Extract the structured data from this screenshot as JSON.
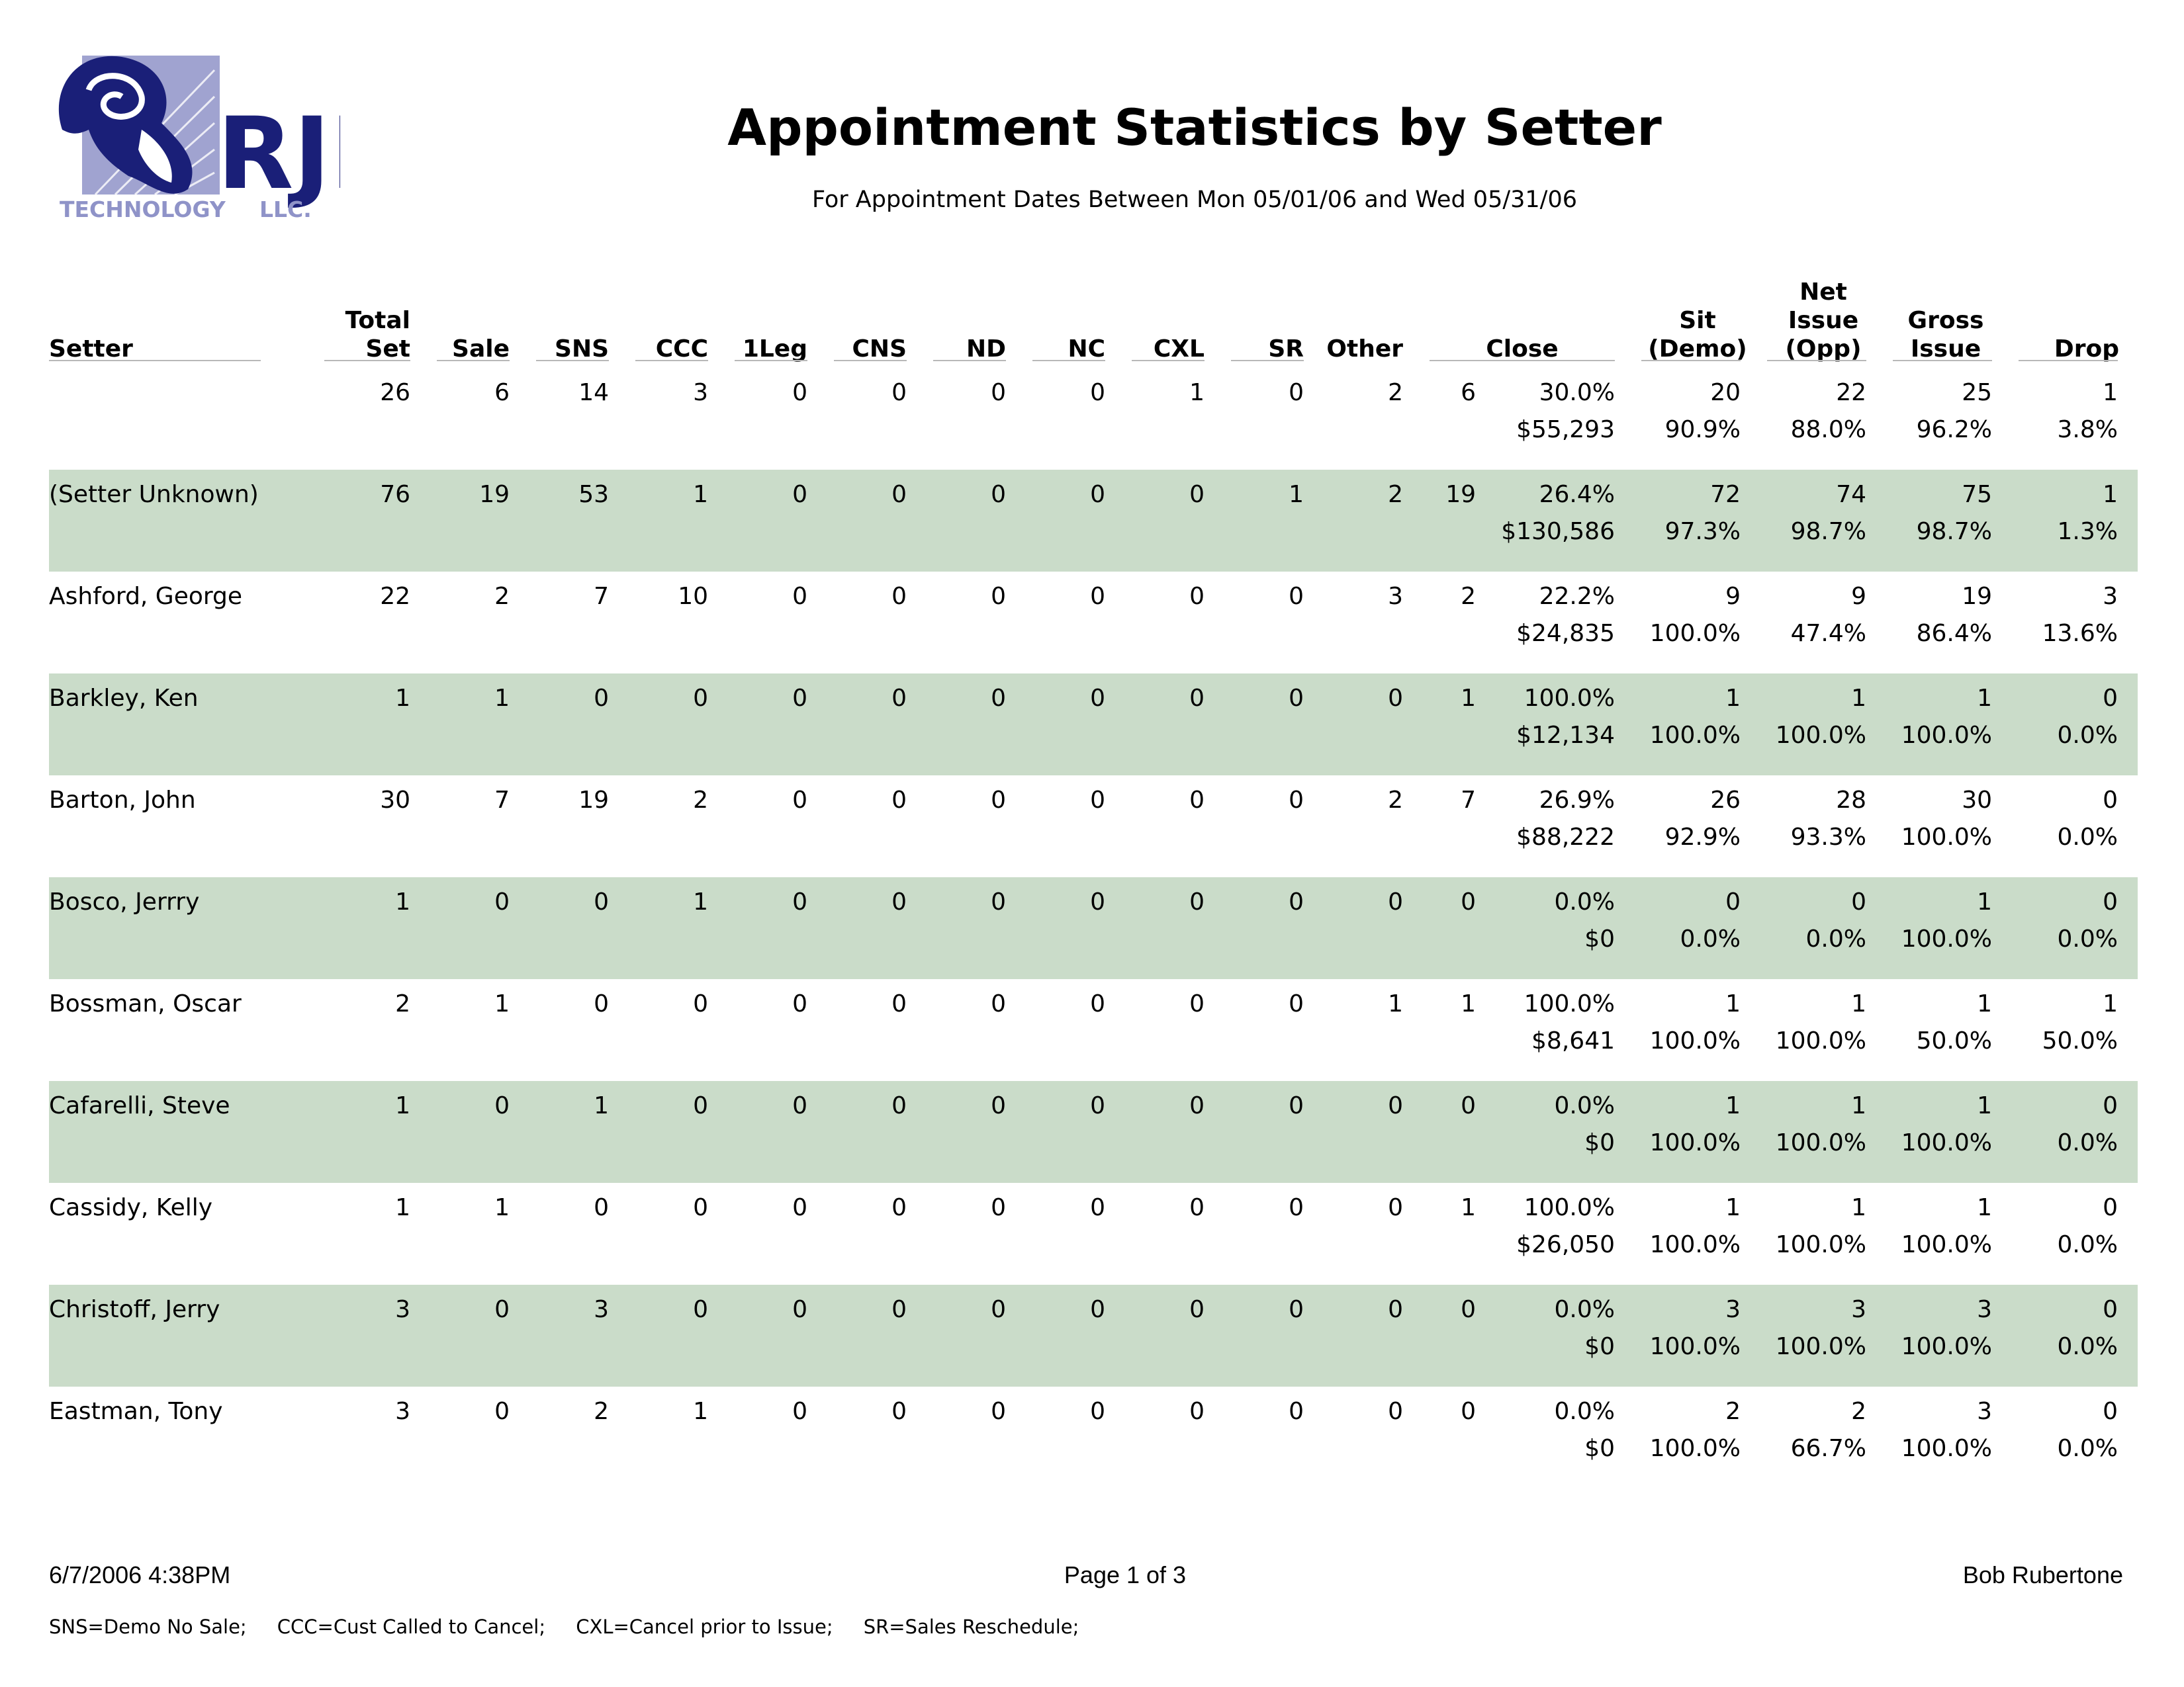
{
  "header": {
    "logo": {
      "main_text": "RJR",
      "sub_text": "TECHNOLOGY",
      "suffix": "LLC."
    },
    "title": "Appointment Statistics by Setter",
    "subtitle": "For Appointment Dates Between Mon 05/01/06 and Wed 05/31/06"
  },
  "columns": {
    "setter": "Setter",
    "total_set_1": "Total",
    "total_set_2": "Set",
    "sale": "Sale",
    "sns": "SNS",
    "ccc": "CCC",
    "oneleg": "1Leg",
    "cns": "CNS",
    "nd": "ND",
    "nc": "NC",
    "cxl": "CXL",
    "sr": "SR",
    "other": "Other",
    "close": "Close",
    "sit_1": "Sit",
    "sit_2": "(Demo)",
    "net_1": "Net",
    "net_2": "Issue",
    "net_3": "(Opp)",
    "gross_1": "Gross",
    "gross_2": "Issue",
    "drop": "Drop"
  },
  "rows": [
    {
      "setter": "",
      "total": "26",
      "sale": "6",
      "sns": "14",
      "ccc": "3",
      "oneleg": "0",
      "cns": "0",
      "nd": "0",
      "nc": "0",
      "cxl": "1",
      "sr": "0",
      "other": "2",
      "close_n": "6",
      "close_pct": "30.0%",
      "close_amt": "$55,293",
      "sit": "20",
      "sit_pct": "90.9%",
      "net": "22",
      "net_pct": "88.0%",
      "gross": "25",
      "gross_pct": "96.2%",
      "drop": "1",
      "drop_pct": "3.8%"
    },
    {
      "setter": "(Setter Unknown)",
      "total": "76",
      "sale": "19",
      "sns": "53",
      "ccc": "1",
      "oneleg": "0",
      "cns": "0",
      "nd": "0",
      "nc": "0",
      "cxl": "0",
      "sr": "1",
      "other": "2",
      "close_n": "19",
      "close_pct": "26.4%",
      "close_amt": "$130,586",
      "sit": "72",
      "sit_pct": "97.3%",
      "net": "74",
      "net_pct": "98.7%",
      "gross": "75",
      "gross_pct": "98.7%",
      "drop": "1",
      "drop_pct": "1.3%"
    },
    {
      "setter": "Ashford, George",
      "total": "22",
      "sale": "2",
      "sns": "7",
      "ccc": "10",
      "oneleg": "0",
      "cns": "0",
      "nd": "0",
      "nc": "0",
      "cxl": "0",
      "sr": "0",
      "other": "3",
      "close_n": "2",
      "close_pct": "22.2%",
      "close_amt": "$24,835",
      "sit": "9",
      "sit_pct": "100.0%",
      "net": "9",
      "net_pct": "47.4%",
      "gross": "19",
      "gross_pct": "86.4%",
      "drop": "3",
      "drop_pct": "13.6%"
    },
    {
      "setter": "Barkley, Ken",
      "total": "1",
      "sale": "1",
      "sns": "0",
      "ccc": "0",
      "oneleg": "0",
      "cns": "0",
      "nd": "0",
      "nc": "0",
      "cxl": "0",
      "sr": "0",
      "other": "0",
      "close_n": "1",
      "close_pct": "100.0%",
      "close_amt": "$12,134",
      "sit": "1",
      "sit_pct": "100.0%",
      "net": "1",
      "net_pct": "100.0%",
      "gross": "1",
      "gross_pct": "100.0%",
      "drop": "0",
      "drop_pct": "0.0%"
    },
    {
      "setter": "Barton, John",
      "total": "30",
      "sale": "7",
      "sns": "19",
      "ccc": "2",
      "oneleg": "0",
      "cns": "0",
      "nd": "0",
      "nc": "0",
      "cxl": "0",
      "sr": "0",
      "other": "2",
      "close_n": "7",
      "close_pct": "26.9%",
      "close_amt": "$88,222",
      "sit": "26",
      "sit_pct": "92.9%",
      "net": "28",
      "net_pct": "93.3%",
      "gross": "30",
      "gross_pct": "100.0%",
      "drop": "0",
      "drop_pct": "0.0%"
    },
    {
      "setter": "Bosco, Jerrry",
      "total": "1",
      "sale": "0",
      "sns": "0",
      "ccc": "1",
      "oneleg": "0",
      "cns": "0",
      "nd": "0",
      "nc": "0",
      "cxl": "0",
      "sr": "0",
      "other": "0",
      "close_n": "0",
      "close_pct": "0.0%",
      "close_amt": "$0",
      "sit": "0",
      "sit_pct": "0.0%",
      "net": "0",
      "net_pct": "0.0%",
      "gross": "1",
      "gross_pct": "100.0%",
      "drop": "0",
      "drop_pct": "0.0%"
    },
    {
      "setter": "Bossman, Oscar",
      "total": "2",
      "sale": "1",
      "sns": "0",
      "ccc": "0",
      "oneleg": "0",
      "cns": "0",
      "nd": "0",
      "nc": "0",
      "cxl": "0",
      "sr": "0",
      "other": "1",
      "close_n": "1",
      "close_pct": "100.0%",
      "close_amt": "$8,641",
      "sit": "1",
      "sit_pct": "100.0%",
      "net": "1",
      "net_pct": "100.0%",
      "gross": "1",
      "gross_pct": "50.0%",
      "drop": "1",
      "drop_pct": "50.0%"
    },
    {
      "setter": "Cafarelli, Steve",
      "total": "1",
      "sale": "0",
      "sns": "1",
      "ccc": "0",
      "oneleg": "0",
      "cns": "0",
      "nd": "0",
      "nc": "0",
      "cxl": "0",
      "sr": "0",
      "other": "0",
      "close_n": "0",
      "close_pct": "0.0%",
      "close_amt": "$0",
      "sit": "1",
      "sit_pct": "100.0%",
      "net": "1",
      "net_pct": "100.0%",
      "gross": "1",
      "gross_pct": "100.0%",
      "drop": "0",
      "drop_pct": "0.0%"
    },
    {
      "setter": "Cassidy, Kelly",
      "total": "1",
      "sale": "1",
      "sns": "0",
      "ccc": "0",
      "oneleg": "0",
      "cns": "0",
      "nd": "0",
      "nc": "0",
      "cxl": "0",
      "sr": "0",
      "other": "0",
      "close_n": "1",
      "close_pct": "100.0%",
      "close_amt": "$26,050",
      "sit": "1",
      "sit_pct": "100.0%",
      "net": "1",
      "net_pct": "100.0%",
      "gross": "1",
      "gross_pct": "100.0%",
      "drop": "0",
      "drop_pct": "0.0%"
    },
    {
      "setter": "Christoff, Jerry",
      "total": "3",
      "sale": "0",
      "sns": "3",
      "ccc": "0",
      "oneleg": "0",
      "cns": "0",
      "nd": "0",
      "nc": "0",
      "cxl": "0",
      "sr": "0",
      "other": "0",
      "close_n": "0",
      "close_pct": "0.0%",
      "close_amt": "$0",
      "sit": "3",
      "sit_pct": "100.0%",
      "net": "3",
      "net_pct": "100.0%",
      "gross": "3",
      "gross_pct": "100.0%",
      "drop": "0",
      "drop_pct": "0.0%"
    },
    {
      "setter": "Eastman, Tony",
      "total": "3",
      "sale": "0",
      "sns": "2",
      "ccc": "1",
      "oneleg": "0",
      "cns": "0",
      "nd": "0",
      "nc": "0",
      "cxl": "0",
      "sr": "0",
      "other": "0",
      "close_n": "0",
      "close_pct": "0.0%",
      "close_amt": "$0",
      "sit": "2",
      "sit_pct": "100.0%",
      "net": "2",
      "net_pct": "66.7%",
      "gross": "3",
      "gross_pct": "100.0%",
      "drop": "0",
      "drop_pct": "0.0%"
    }
  ],
  "footer": {
    "printed": "6/7/2006 4:38PM",
    "page": "Page 1 of 3",
    "user": "Bob Rubertone",
    "legend": "SNS=Demo No Sale;     CCC=Cust Called to Cancel;     CXL=Cancel prior to Issue;     SR=Sales Reschedule;"
  },
  "colors": {
    "row_shade": "#cadcc9",
    "logo_navy": "#1a1f78",
    "logo_lavender": "#8f93c8"
  }
}
